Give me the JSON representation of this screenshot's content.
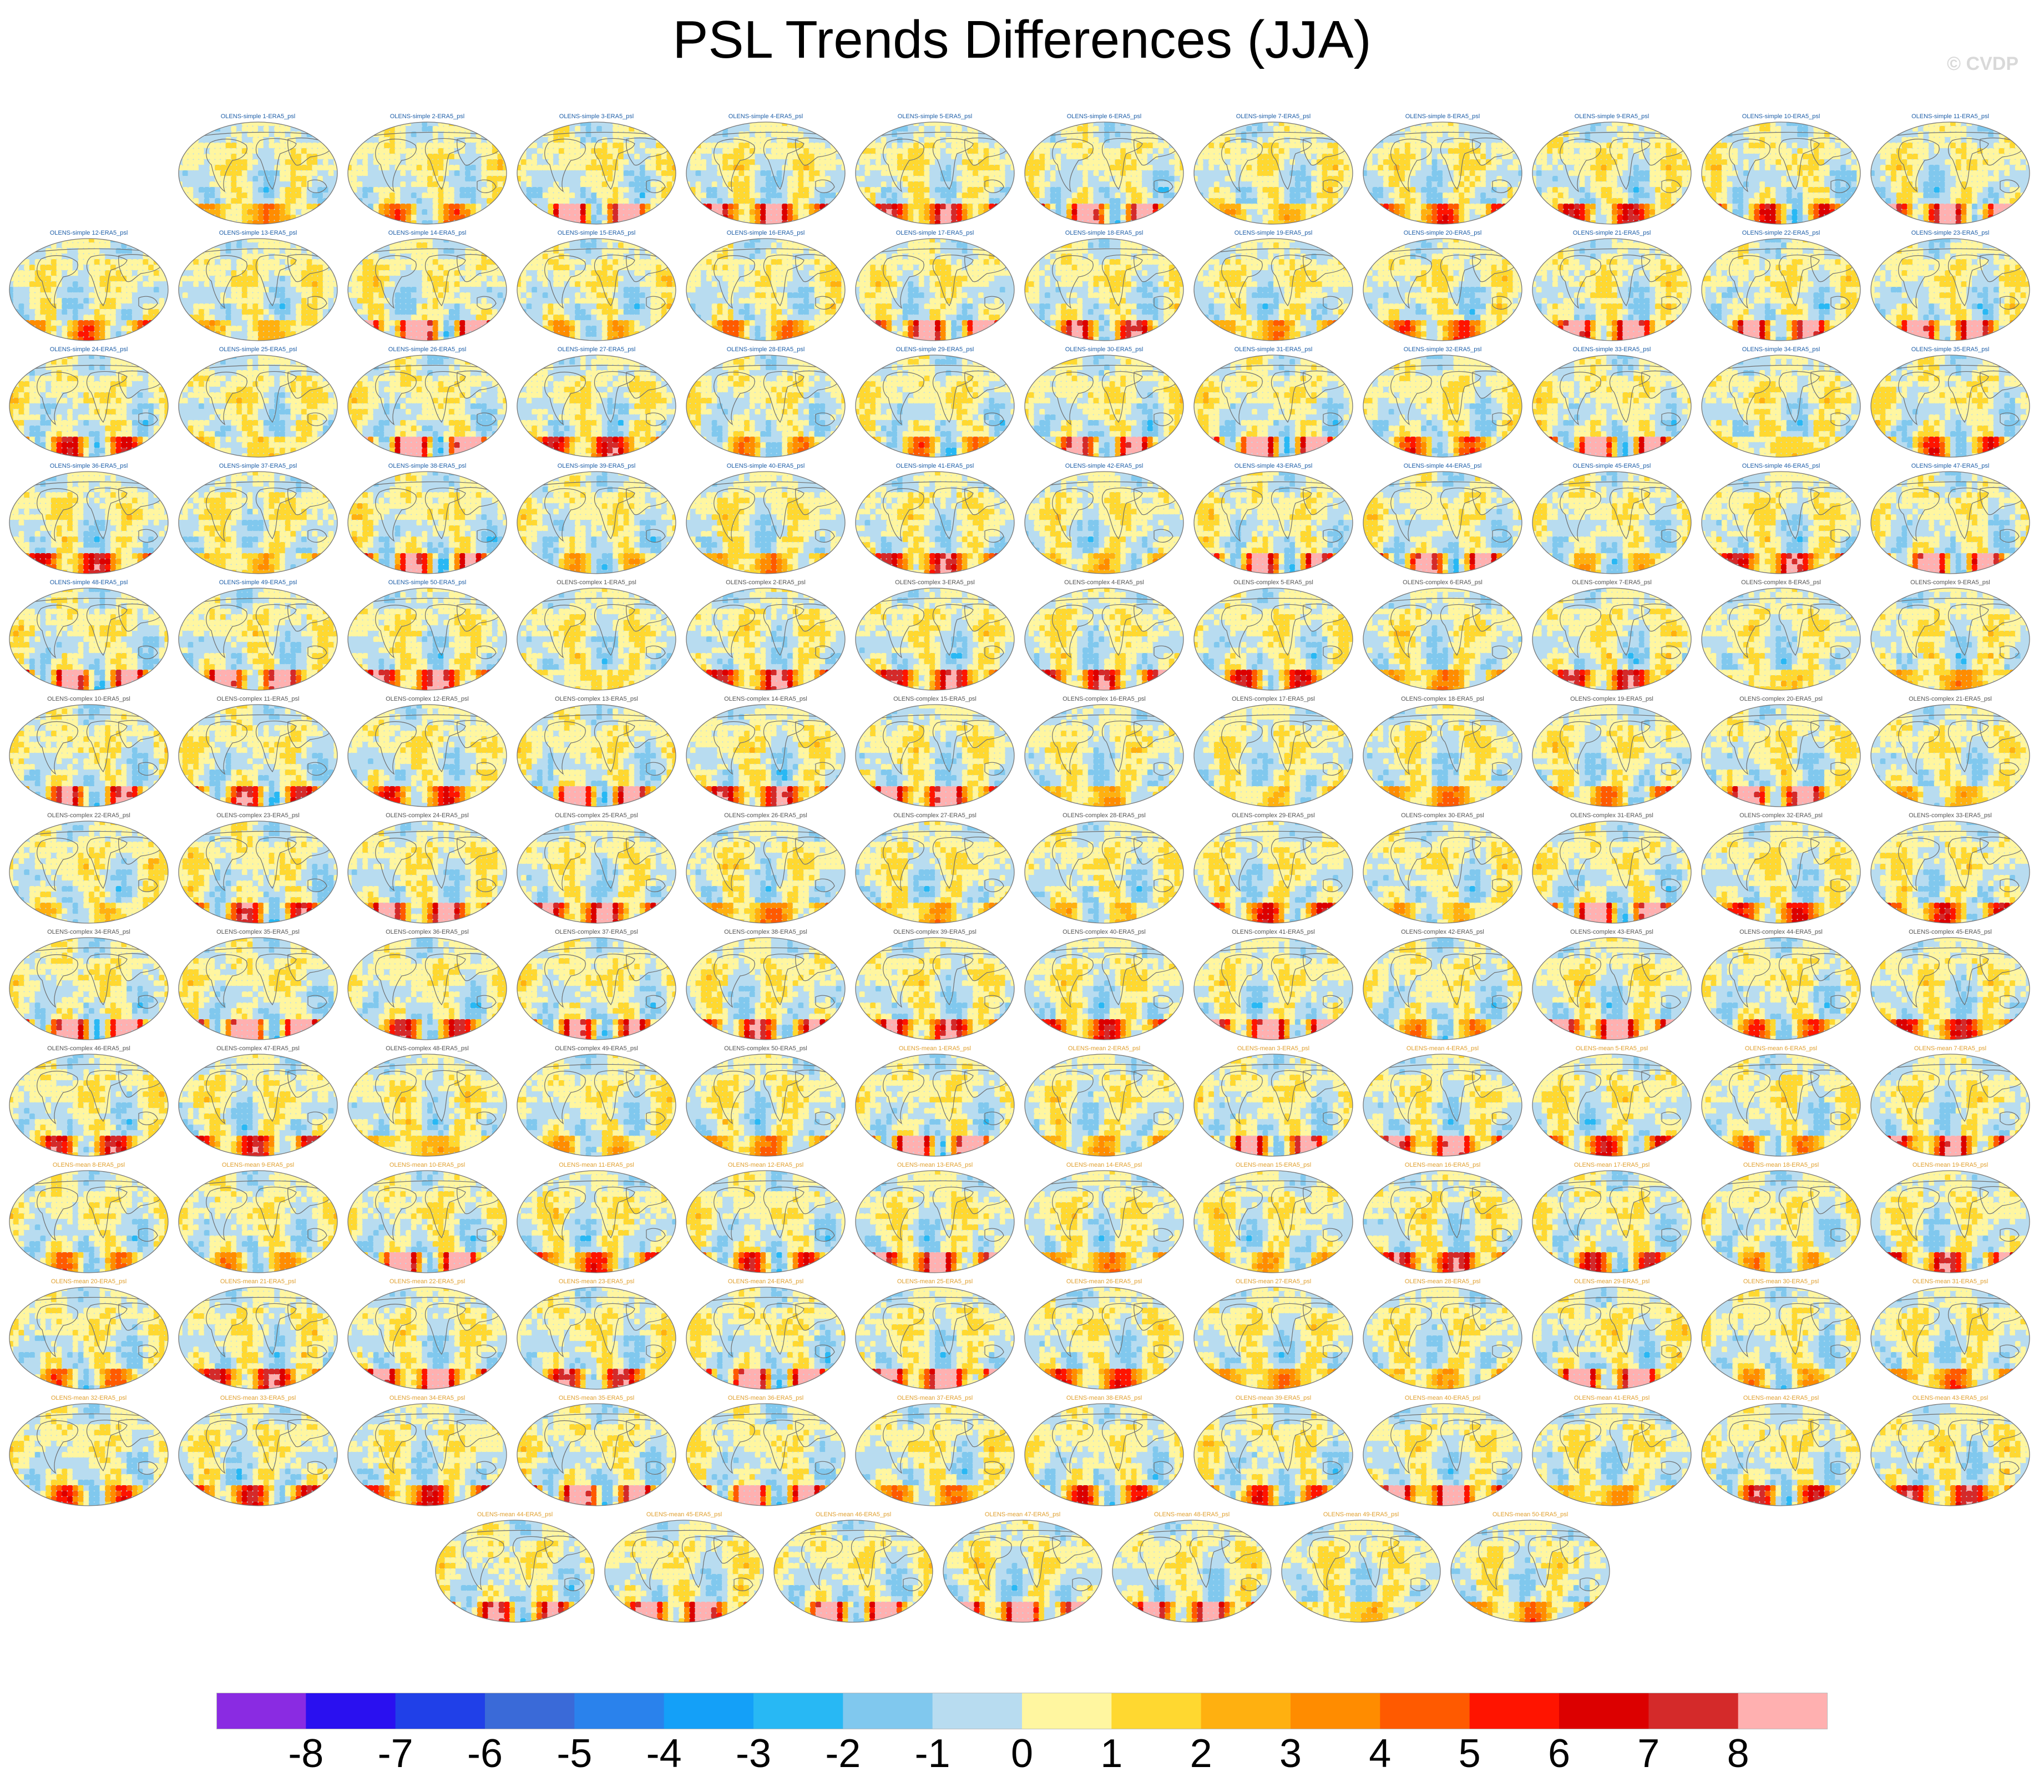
{
  "title": "PSL Trends Differences (JJA)",
  "watermark": "© CVDP",
  "chart_data": {
    "type": "heatmap",
    "title": "PSL Trends Differences (JJA)",
    "panel_count": 150,
    "panel_labels": [
      "OLENS-simple 1-ERA5_psl",
      "OLENS-simple 2-ERA5_psl",
      "OLENS-simple 3-ERA5_psl",
      "OLENS-simple 4-ERA5_psl",
      "OLENS-simple 5-ERA5_psl",
      "OLENS-simple 6-ERA5_psl",
      "OLENS-simple 7-ERA5_psl",
      "OLENS-simple 8-ERA5_psl",
      "OLENS-simple 9-ERA5_psl",
      "OLENS-simple 10-ERA5_psl",
      "OLENS-simple 11-ERA5_psl",
      "OLENS-simple 12-ERA5_psl",
      "OLENS-simple 13-ERA5_psl",
      "OLENS-simple 14-ERA5_psl",
      "OLENS-simple 15-ERA5_psl",
      "OLENS-simple 16-ERA5_psl",
      "OLENS-simple 17-ERA5_psl",
      "OLENS-simple 18-ERA5_psl",
      "OLENS-simple 19-ERA5_psl",
      "OLENS-simple 20-ERA5_psl",
      "OLENS-simple 21-ERA5_psl",
      "OLENS-simple 22-ERA5_psl",
      "OLENS-simple 23-ERA5_psl",
      "OLENS-simple 24-ERA5_psl",
      "OLENS-simple 25-ERA5_psl",
      "OLENS-simple 26-ERA5_psl",
      "OLENS-simple 27-ERA5_psl",
      "OLENS-simple 28-ERA5_psl",
      "OLENS-simple 29-ERA5_psl",
      "OLENS-simple 30-ERA5_psl",
      "OLENS-simple 31-ERA5_psl",
      "OLENS-simple 32-ERA5_psl",
      "OLENS-simple 33-ERA5_psl",
      "OLENS-simple 34-ERA5_psl",
      "OLENS-simple 35-ERA5_psl",
      "OLENS-simple 36-ERA5_psl",
      "OLENS-simple 37-ERA5_psl",
      "OLENS-simple 38-ERA5_psl",
      "OLENS-simple 39-ERA5_psl",
      "OLENS-simple 40-ERA5_psl",
      "OLENS-simple 41-ERA5_psl",
      "OLENS-simple 42-ERA5_psl",
      "OLENS-simple 43-ERA5_psl",
      "OLENS-simple 44-ERA5_psl",
      "OLENS-simple 45-ERA5_psl",
      "OLENS-simple 46-ERA5_psl",
      "OLENS-simple 47-ERA5_psl",
      "OLENS-simple 48-ERA5_psl",
      "OLENS-simple 49-ERA5_psl",
      "OLENS-simple 50-ERA5_psl",
      "OLENS-complex 1-ERA5_psl",
      "OLENS-complex 2-ERA5_psl",
      "OLENS-complex 3-ERA5_psl",
      "OLENS-complex 4-ERA5_psl",
      "OLENS-complex 5-ERA5_psl",
      "OLENS-complex 6-ERA5_psl",
      "OLENS-complex 7-ERA5_psl",
      "OLENS-complex 8-ERA5_psl",
      "OLENS-complex 9-ERA5_psl",
      "OLENS-complex 10-ERA5_psl",
      "OLENS-complex 11-ERA5_psl",
      "OLENS-complex 12-ERA5_psl",
      "OLENS-complex 13-ERA5_psl",
      "OLENS-complex 14-ERA5_psl",
      "OLENS-complex 15-ERA5_psl",
      "OLENS-complex 16-ERA5_psl",
      "OLENS-complex 17-ERA5_psl",
      "OLENS-complex 18-ERA5_psl",
      "OLENS-complex 19-ERA5_psl",
      "OLENS-complex 20-ERA5_psl",
      "OLENS-complex 21-ERA5_psl",
      "OLENS-complex 22-ERA5_psl",
      "OLENS-complex 23-ERA5_psl",
      "OLENS-complex 24-ERA5_psl",
      "OLENS-complex 25-ERA5_psl",
      "OLENS-complex 26-ERA5_psl",
      "OLENS-complex 27-ERA5_psl",
      "OLENS-complex 28-ERA5_psl",
      "OLENS-complex 29-ERA5_psl",
      "OLENS-complex 30-ERA5_psl",
      "OLENS-complex 31-ERA5_psl",
      "OLENS-complex 32-ERA5_psl",
      "OLENS-complex 33-ERA5_psl",
      "OLENS-complex 34-ERA5_psl",
      "OLENS-complex 35-ERA5_psl",
      "OLENS-complex 36-ERA5_psl",
      "OLENS-complex 37-ERA5_psl",
      "OLENS-complex 38-ERA5_psl",
      "OLENS-complex 39-ERA5_psl",
      "OLENS-complex 40-ERA5_psl",
      "OLENS-complex 41-ERA5_psl",
      "OLENS-complex 42-ERA5_psl",
      "OLENS-complex 43-ERA5_psl",
      "OLENS-complex 44-ERA5_psl",
      "OLENS-complex 45-ERA5_psl",
      "OLENS-complex 46-ERA5_psl",
      "OLENS-complex 47-ERA5_psl",
      "OLENS-complex 48-ERA5_psl",
      "OLENS-complex 49-ERA5_psl",
      "OLENS-complex 50-ERA5_psl",
      "OLENS-mean 1-ERA5_psl",
      "OLENS-mean 2-ERA5_psl",
      "OLENS-mean 3-ERA5_psl",
      "OLENS-mean 4-ERA5_psl",
      "OLENS-mean 5-ERA5_psl",
      "OLENS-mean 6-ERA5_psl",
      "OLENS-mean 7-ERA5_psl",
      "OLENS-mean 8-ERA5_psl",
      "OLENS-mean 9-ERA5_psl",
      "OLENS-mean 10-ERA5_psl",
      "OLENS-mean 11-ERA5_psl",
      "OLENS-mean 12-ERA5_psl",
      "OLENS-mean 13-ERA5_psl",
      "OLENS-mean 14-ERA5_psl",
      "OLENS-mean 15-ERA5_psl",
      "OLENS-mean 16-ERA5_psl",
      "OLENS-mean 17-ERA5_psl",
      "OLENS-mean 18-ERA5_psl",
      "OLENS-mean 19-ERA5_psl",
      "OLENS-mean 20-ERA5_psl",
      "OLENS-mean 21-ERA5_psl",
      "OLENS-mean 22-ERA5_psl",
      "OLENS-mean 23-ERA5_psl",
      "OLENS-mean 24-ERA5_psl",
      "OLENS-mean 25-ERA5_psl",
      "OLENS-mean 26-ERA5_psl",
      "OLENS-mean 27-ERA5_psl",
      "OLENS-mean 28-ERA5_psl",
      "OLENS-mean 29-ERA5_psl",
      "OLENS-mean 30-ERA5_psl",
      "OLENS-mean 31-ERA5_psl",
      "OLENS-mean 32-ERA5_psl",
      "OLENS-mean 33-ERA5_psl",
      "OLENS-mean 34-ERA5_psl",
      "OLENS-mean 35-ERA5_psl",
      "OLENS-mean 36-ERA5_psl",
      "OLENS-mean 37-ERA5_psl",
      "OLENS-mean 38-ERA5_psl",
      "OLENS-mean 39-ERA5_psl",
      "OLENS-mean 40-ERA5_psl",
      "OLENS-mean 41-ERA5_psl",
      "OLENS-mean 42-ERA5_psl",
      "OLENS-mean 43-ERA5_psl",
      "OLENS-mean 44-ERA5_psl",
      "OLENS-mean 45-ERA5_psl",
      "OLENS-mean 46-ERA5_psl",
      "OLENS-mean 47-ERA5_psl",
      "OLENS-mean 48-ERA5_psl",
      "OLENS-mean 49-ERA5_psl",
      "OLENS-mean 50-ERA5_psl"
    ],
    "label_colors": {
      "OLENS-simple": "#1f5fa8",
      "OLENS-complex": "#555555",
      "OLENS-mean": "#e0a030"
    },
    "colorbar": {
      "labels": [
        "-8",
        "-7",
        "-6",
        "-5",
        "-4",
        "-3",
        "-2",
        "-1",
        "0",
        "1",
        "2",
        "3",
        "4",
        "5",
        "6",
        "7",
        "8"
      ],
      "colors": [
        "#8a2be2",
        "#2a10f0",
        "#2040e8",
        "#3a6ad8",
        "#2a82ec",
        "#14a0f8",
        "#28b8f4",
        "#80c8ee",
        "#b8dcf0",
        "#fff6a0",
        "#ffd830",
        "#ffb010",
        "#ff8c00",
        "#ff5a00",
        "#ff1400",
        "#dc0000",
        "#d42a2a",
        "#ffb0b0"
      ]
    }
  }
}
